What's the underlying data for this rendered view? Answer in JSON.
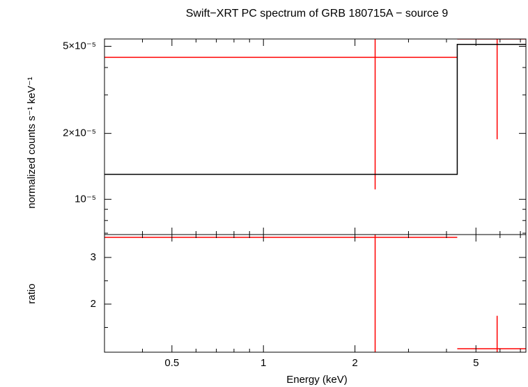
{
  "chart_data": [
    {
      "type": "errorbar",
      "title": "Swift−XRT PC spectrum of GRB 180715A − source 9",
      "ylabel": "normalized counts s⁻¹ keV⁻¹",
      "xlog": true,
      "ylog": true,
      "xlim": [
        0.3,
        7.3
      ],
      "ylim": [
        6.9e-06,
        5.4e-05
      ],
      "yticks": [
        {
          "value": 1e-05,
          "label": "10⁻⁵"
        },
        {
          "value": 2e-05,
          "label": "2×10⁻⁵"
        },
        {
          "value": 5e-05,
          "label": "5×10⁻⁵"
        }
      ],
      "yminor": [
        7e-06,
        8e-06,
        9e-06,
        3e-05,
        4e-05
      ],
      "series": [
        {
          "color": "#ff0000",
          "x": [
            2.33,
            5.87
          ],
          "x_lo": [
            0.3,
            4.34
          ],
          "x_hi": [
            4.34,
            7.3
          ],
          "values": [
            4.45e-05,
            5.4e-05
          ],
          "y_lo": [
            1.11e-05,
            1.88e-05
          ],
          "y_hi": [
            5.4e-05,
            5.4e-05
          ]
        },
        {
          "color": "#000000",
          "style": "step",
          "x_lo": [
            0.3,
            4.34
          ],
          "x_hi": [
            4.34,
            7.3
          ],
          "values": [
            1.3e-05,
            5.1e-05
          ]
        }
      ]
    },
    {
      "type": "errorbar",
      "xlabel": "Energy (keV)",
      "ylabel": "ratio",
      "xlog": true,
      "ylog": false,
      "xlim": [
        0.3,
        7.3
      ],
      "xticks": [
        0.5,
        1,
        2,
        5
      ],
      "xminor": [
        0.4,
        0.6,
        0.7,
        0.8,
        0.9,
        3,
        4,
        6,
        7
      ],
      "ylim": [
        0.97,
        3.49
      ],
      "yticks": [
        2,
        3
      ],
      "yminor": [
        1.5,
        2.5
      ],
      "series": [
        {
          "color": "#ff0000",
          "x": [
            2.33,
            5.87
          ],
          "x_lo": [
            0.3,
            4.34
          ],
          "x_hi": [
            4.34,
            7.3
          ],
          "values": [
            3.43,
            1.045
          ],
          "y_lo": [
            0.97,
            0.97
          ],
          "y_hi": [
            3.49,
            1.75
          ]
        }
      ]
    }
  ]
}
